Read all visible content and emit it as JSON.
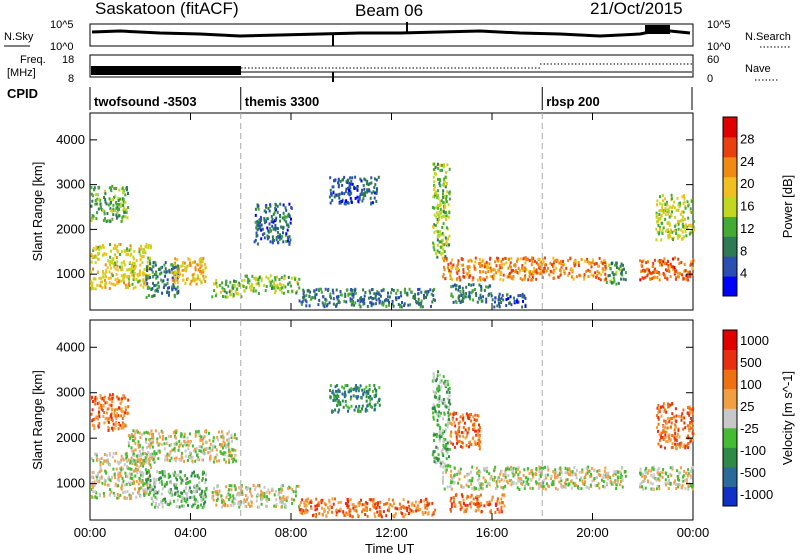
{
  "header": {
    "station_title": "Saskatoon (fitACF)",
    "beam_title": "Beam 06",
    "date_title": "21/Oct/2015"
  },
  "top_panels": {
    "nsky_label": "N.Sky",
    "nsearch_label": "N.Search",
    "nsky_ticks": [
      "10^5",
      "10^0"
    ],
    "nsearch_ticks": [
      "10^5",
      "10^0"
    ],
    "freq_label_line1": "Freq.",
    "freq_label_line2": "[MHz]",
    "freq_ticks": [
      "18",
      "8"
    ],
    "nave_label": "Nave",
    "nave_ticks": [
      "60",
      "0"
    ],
    "cpid_label": "CPID",
    "cpid_segments": [
      {
        "name": "twofsound -3503",
        "start_hour": 0
      },
      {
        "name": "themis 3300",
        "start_hour": 6
      },
      {
        "name": "rbsp 200",
        "start_hour": 18
      }
    ]
  },
  "chart_data": [
    {
      "type": "heatmap",
      "title": "",
      "xlabel": "Time UT",
      "ylabel": "Slant Range [km]",
      "xlim": [
        0,
        24
      ],
      "ylim": [
        200,
        4600
      ],
      "x_tick_labels": [
        "00:00",
        "04:00",
        "08:00",
        "12:00",
        "16:00",
        "20:00",
        "00:00"
      ],
      "x_tick_hours": [
        0,
        4,
        8,
        12,
        16,
        20,
        24
      ],
      "y_ticks": [
        1000,
        2000,
        3000,
        4000
      ],
      "colorbar": {
        "label": "Power [dB]",
        "range": [
          0,
          32
        ],
        "ticks": [
          4,
          8,
          12,
          16,
          20,
          24,
          28
        ],
        "colors": [
          "#0000ff",
          "#2a4fb0",
          "#2e7a55",
          "#44aa33",
          "#c0d820",
          "#f0c020",
          "#f08a10",
          "#e84010",
          "#e00000"
        ]
      },
      "regions": [
        {
          "t0": 0.0,
          "t1": 2.4,
          "r0": 700,
          "r1": 1700,
          "level": 18
        },
        {
          "t0": 0.0,
          "t1": 1.5,
          "r0": 2200,
          "r1": 3000,
          "level": 12
        },
        {
          "t0": 2.2,
          "t1": 3.5,
          "r0": 500,
          "r1": 1300,
          "level": 8
        },
        {
          "t0": 3.2,
          "t1": 4.6,
          "r0": 800,
          "r1": 1400,
          "level": 20
        },
        {
          "t0": 4.8,
          "t1": 6.0,
          "r0": 500,
          "r1": 900,
          "level": 14
        },
        {
          "t0": 6.0,
          "t1": 8.3,
          "r0": 600,
          "r1": 1000,
          "level": 14
        },
        {
          "t0": 6.5,
          "t1": 8.0,
          "r0": 1700,
          "r1": 2600,
          "level": 6
        },
        {
          "t0": 8.3,
          "t1": 13.7,
          "r0": 300,
          "r1": 700,
          "level": 7
        },
        {
          "t0": 9.5,
          "t1": 11.5,
          "r0": 2600,
          "r1": 3200,
          "level": 5
        },
        {
          "t0": 14.0,
          "t1": 20.5,
          "r0": 900,
          "r1": 1400,
          "level": 24
        },
        {
          "t0": 20.5,
          "t1": 21.3,
          "r0": 800,
          "r1": 1300,
          "level": 10
        },
        {
          "t0": 21.8,
          "t1": 24.0,
          "r0": 900,
          "r1": 1400,
          "level": 26
        },
        {
          "t0": 22.5,
          "t1": 24.0,
          "r0": 1800,
          "r1": 2800,
          "level": 16
        },
        {
          "t0": 13.6,
          "t1": 14.3,
          "r0": 1400,
          "r1": 3500,
          "level": 14
        },
        {
          "t0": 14.3,
          "t1": 16.0,
          "r0": 400,
          "r1": 800,
          "level": 8
        },
        {
          "t0": 16.0,
          "t1": 17.3,
          "r0": 300,
          "r1": 600,
          "level": 6
        }
      ]
    },
    {
      "type": "heatmap",
      "title": "",
      "xlabel": "Time UT",
      "ylabel": "Slant Range [km]",
      "xlim": [
        0,
        24
      ],
      "ylim": [
        200,
        4600
      ],
      "x_tick_labels": [
        "00:00",
        "04:00",
        "08:00",
        "12:00",
        "16:00",
        "20:00",
        "00:00"
      ],
      "x_tick_hours": [
        0,
        4,
        8,
        12,
        16,
        20,
        24
      ],
      "y_ticks": [
        1000,
        2000,
        3000,
        4000
      ],
      "colorbar": {
        "label": "Velocity [m s^-1]",
        "tick_labels": [
          "1000",
          "500",
          "100",
          "25",
          "-25",
          "-100",
          "-500",
          "-1000"
        ],
        "colors": [
          "#1030c8",
          "#2a6a9a",
          "#2e8a45",
          "#44bb33",
          "#c8c8c8",
          "#f0a040",
          "#f07010",
          "#e83010",
          "#e00000"
        ]
      },
      "regions": [
        {
          "t0": 0.0,
          "t1": 2.4,
          "r0": 700,
          "r1": 1700,
          "level": 4
        },
        {
          "t0": 0.0,
          "t1": 1.5,
          "r0": 2200,
          "r1": 3000,
          "level": 6
        },
        {
          "t0": 1.5,
          "t1": 5.8,
          "r0": 1500,
          "r1": 2200,
          "level": 4
        },
        {
          "t0": 2.2,
          "t1": 4.6,
          "r0": 500,
          "r1": 1300,
          "level": 3
        },
        {
          "t0": 4.8,
          "t1": 8.3,
          "r0": 500,
          "r1": 1000,
          "level": 4
        },
        {
          "t0": 8.3,
          "t1": 13.7,
          "r0": 300,
          "r1": 700,
          "level": 6
        },
        {
          "t0": 9.5,
          "t1": 11.5,
          "r0": 2600,
          "r1": 3200,
          "level": 2
        },
        {
          "t0": 14.0,
          "t1": 21.3,
          "r0": 900,
          "r1": 1400,
          "level": 4
        },
        {
          "t0": 21.8,
          "t1": 24.0,
          "r0": 900,
          "r1": 1400,
          "level": 4
        },
        {
          "t0": 22.5,
          "t1": 24.0,
          "r0": 1800,
          "r1": 2800,
          "level": 6
        },
        {
          "t0": 13.6,
          "t1": 14.3,
          "r0": 1400,
          "r1": 3500,
          "level": 3
        },
        {
          "t0": 14.3,
          "t1": 16.5,
          "r0": 400,
          "r1": 800,
          "level": 6
        },
        {
          "t0": 14.3,
          "t1": 15.5,
          "r0": 1800,
          "r1": 2600,
          "level": 6
        }
      ]
    }
  ]
}
